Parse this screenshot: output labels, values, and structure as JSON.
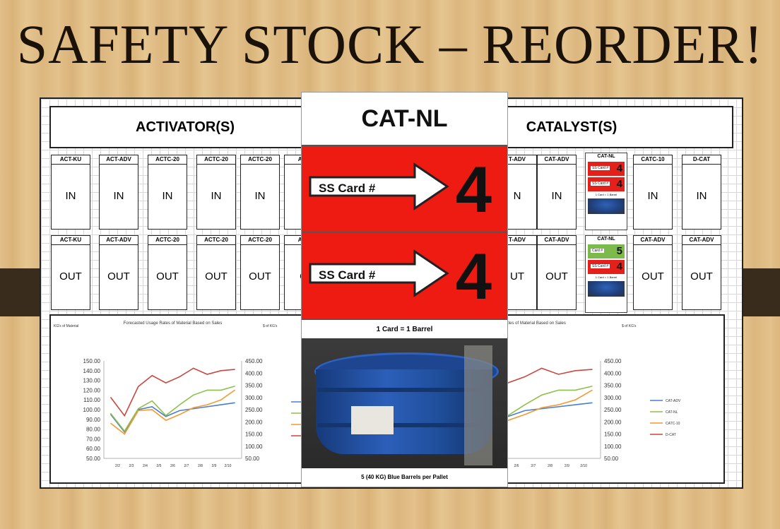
{
  "title": "SAFETY STOCK – REORDER!",
  "board": {
    "left_header": "ACTIVATOR(S)",
    "right_header": "CATALYST(S)",
    "left_top_bins": [
      {
        "label": "ACT-KU",
        "value": "IN"
      },
      {
        "label": "ACT-ADV",
        "value": "IN"
      },
      {
        "label": "ACTC-20",
        "value": "IN"
      },
      {
        "label": "ACTC-20",
        "value": "IN"
      },
      {
        "label": "ACTC-20",
        "value": "IN"
      },
      {
        "label": "ACT",
        "value": "I"
      }
    ],
    "left_bottom_bins": [
      {
        "label": "ACT-KU",
        "value": "OUT"
      },
      {
        "label": "ACT-ADV",
        "value": "OUT"
      },
      {
        "label": "ACTC-20",
        "value": "OUT"
      },
      {
        "label": "ACTC-20",
        "value": "OUT"
      },
      {
        "label": "ACTC-20",
        "value": "OUT"
      },
      {
        "label": "ACT",
        "value": "O"
      }
    ],
    "right_top_bins": [
      {
        "label": "T-ADV",
        "value": "N"
      },
      {
        "label": "CAT-ADV",
        "value": "IN"
      },
      {
        "label": "CATC-10",
        "value": "IN"
      },
      {
        "label": "D-CAT",
        "value": "IN"
      }
    ],
    "right_bottom_bins": [
      {
        "label": "T-ADV",
        "value": "UT"
      },
      {
        "label": "CAT-ADV",
        "value": "OUT"
      },
      {
        "label": "CAT-ADV",
        "value": "OUT"
      },
      {
        "label": "CAT-ADV",
        "value": "OUT"
      }
    ],
    "mini_cards": [
      {
        "title": "CAT-NL",
        "rows": [
          {
            "text": "SS Card #",
            "num": "4"
          },
          {
            "text": "SS Card #",
            "num": "4"
          }
        ],
        "footer": "1 Card = 1 Barrel"
      },
      {
        "title": "CAT-NL",
        "rows": [
          {
            "text": "Card #",
            "num": "5",
            "green": true
          },
          {
            "text": "SS Card #",
            "num": "4"
          }
        ],
        "footer": "1 Card = 1 Barrel"
      }
    ]
  },
  "card": {
    "title": "CAT-NL",
    "ss_label": "SS Card #",
    "ss1_number": "4",
    "ss2_number": "4",
    "rule": "1 Card = 1 Barrel",
    "footer": "5 (40 KG) Blue Barrels per Pallet"
  },
  "colors": {
    "red": "#ee1b12",
    "green": "#7dba4c",
    "blue_barrel": "#1f4e9a"
  },
  "chart_data": [
    {
      "type": "line",
      "title": "Forecasted Usage Rates of Material Based on Sales",
      "ylabel": "KG's of Material",
      "y2label": "$ of KG's",
      "ylim": [
        50,
        150
      ],
      "y2lim": [
        50,
        450
      ],
      "yticks": [
        "150.00",
        "140.00",
        "130.00",
        "120.00",
        "110.00",
        "100.00",
        "90.00",
        "80.00",
        "70.00",
        "60.00",
        "50.00"
      ],
      "y2ticks": [
        "450.00",
        "400.00",
        "350.00",
        "300.00",
        "250.00",
        "200.00",
        "150.00",
        "100.00",
        "50.00"
      ],
      "categories": [
        "",
        "2/1",
        "2/2",
        "2/3",
        "2/4",
        "2/5",
        "2/6",
        "2/7",
        "2/8",
        "2/9"
      ],
      "x": [
        "2/1",
        "2/2",
        "2/3",
        "2/4",
        "2/5",
        "2/6",
        "2/7",
        "2/8",
        "2/9",
        "2/10"
      ],
      "series": [
        {
          "name": "CAT-ADV",
          "color": "#4a7ec8",
          "values": [
            95,
            77,
            100,
            103,
            93,
            99,
            101,
            103,
            105,
            107
          ]
        },
        {
          "name": "CAT-NL",
          "color": "#8fbf4d",
          "values": [
            96,
            78,
            101,
            109,
            94,
            105,
            115,
            120,
            120,
            124
          ]
        },
        {
          "name": "CATC-10",
          "color": "#f39a33",
          "values": [
            86,
            75,
            99,
            100,
            89,
            95,
            102,
            105,
            110,
            120
          ]
        },
        {
          "name": "D-CAT",
          "color": "#c9473f",
          "axis": "y2",
          "values": [
            300,
            225,
            345,
            390,
            360,
            385,
            420,
            395,
            410,
            415
          ]
        }
      ]
    }
  ]
}
